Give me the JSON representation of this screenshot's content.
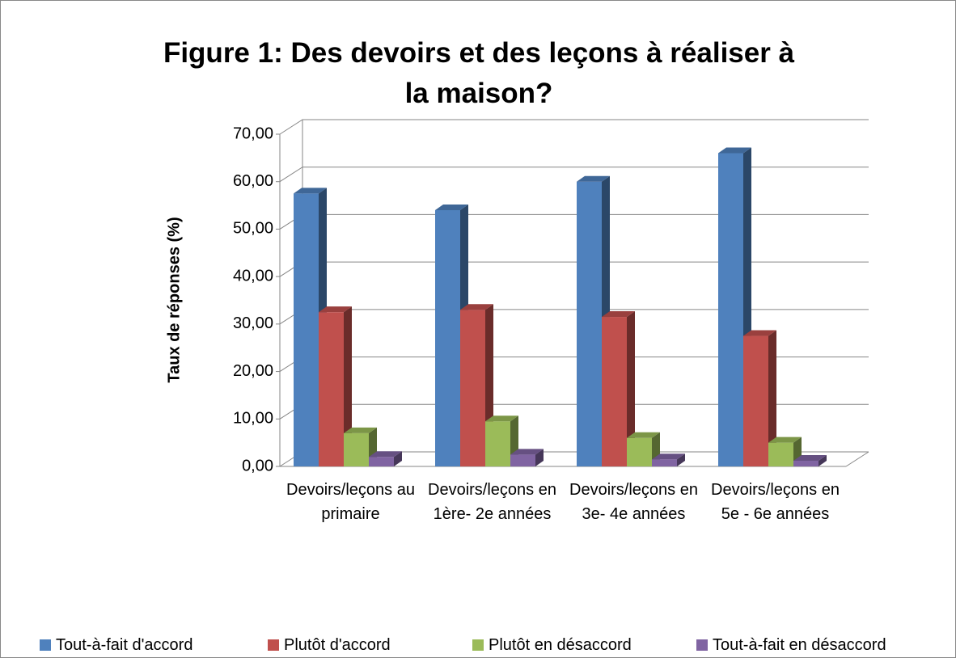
{
  "chart_data": {
    "type": "bar3d",
    "title": "Figure 1: Des devoirs et des leçons à réaliser à la maison?",
    "y_label": "Taux de réponses (%)",
    "categories": [
      "Devoirs/leçons au primaire",
      "Devoirs/leçons en 1ère- 2e années",
      "Devoirs/leçons en 3e- 4e années",
      "Devoirs/leçons en 5e - 6e années"
    ],
    "series": [
      {
        "name": "Tout-à-fait d'accord",
        "color": "#4f81bd",
        "values": [
          57.5,
          54,
          60,
          66
        ]
      },
      {
        "name": "Plutôt d'accord",
        "color": "#c0504d",
        "values": [
          32.5,
          33,
          31.5,
          27.5
        ]
      },
      {
        "name": "Plutôt en désaccord",
        "color": "#9bbb59",
        "values": [
          7,
          9.5,
          6,
          5
        ]
      },
      {
        "name": "Tout-à-fait en désaccord",
        "color": "#8064a2",
        "values": [
          2,
          2.5,
          1.5,
          1.2
        ]
      }
    ],
    "ylim": [
      0,
      70
    ],
    "yticks": [
      {
        "value": 0,
        "label": "0,00"
      },
      {
        "value": 10,
        "label": "10,00"
      },
      {
        "value": 20,
        "label": "20,00"
      },
      {
        "value": 30,
        "label": "30,00"
      },
      {
        "value": 40,
        "label": "40,00"
      },
      {
        "value": 50,
        "label": "50,00"
      },
      {
        "value": 60,
        "label": "60,00"
      },
      {
        "value": 70,
        "label": "70,00"
      }
    ],
    "grid": true,
    "legend": "bottom"
  }
}
